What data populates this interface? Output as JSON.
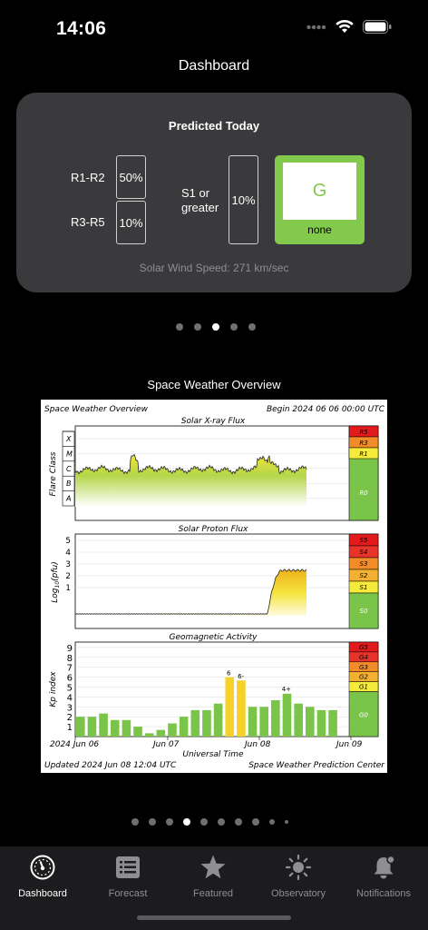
{
  "status": {
    "time": "14:06"
  },
  "header": {
    "title": "Dashboard"
  },
  "predicted": {
    "title": "Predicted Today",
    "r1r2_label": "R1-R2",
    "r1r2_value": "50%",
    "r3r5_label": "R3-R5",
    "r3r5_value": "10%",
    "s1_label": "S1 or greater",
    "s1_value": "10%",
    "g_scale": "G",
    "g_text": "none",
    "wind": "Solar Wind Speed: 271 km/sec",
    "colors": {
      "card": "#3a3a3c",
      "g_scale": "#83c94c"
    }
  },
  "carousel_top": {
    "count": 5,
    "active": 2
  },
  "overview": {
    "title": "Space Weather Overview",
    "header_left": "Space Weather Overview",
    "header_right": "Begin 2024 06 06 00:00 UTC",
    "xray": {
      "title": "Solar X-ray Flux",
      "ylabel": "Flare Class",
      "classes": [
        "X",
        "M",
        "C",
        "B",
        "A"
      ],
      "scale": [
        "R5",
        "R3",
        "R1",
        "R0"
      ]
    },
    "proton": {
      "title": "Solar Proton Flux",
      "ylabel": "Log",
      "ylabel_sub": "10",
      "ylabel_suffix": "(pfu)",
      "ticks": [
        "5",
        "4",
        "3",
        "2",
        "1"
      ],
      "scale": [
        "S5",
        "S4",
        "S3",
        "S2",
        "S1",
        "S0"
      ]
    },
    "geomag": {
      "title": "Geomagnetic Activity",
      "ylabel": "Kp index",
      "ticks": [
        "9",
        "8",
        "7",
        "6",
        "5",
        "4",
        "3",
        "2",
        "1"
      ],
      "scale": [
        "G5",
        "G4",
        "G3",
        "G2",
        "G1",
        "G0"
      ],
      "annotations": [
        "6",
        "6-",
        "4+"
      ]
    },
    "xaxis": {
      "labels": [
        "2024 Jun 06",
        "Jun 07",
        "Jun 08",
        "Jun 09"
      ],
      "title": "Universal Time"
    },
    "footer_left": "Updated 2024 Jun 08 12:04 UTC",
    "footer_right": "Space Weather Prediction Center"
  },
  "chart_data": {
    "type": "bar",
    "title": "Geomagnetic Activity",
    "ylabel": "Kp index",
    "ylim": [
      0,
      9
    ],
    "values": [
      2,
      2,
      2.33,
      1.67,
      1.67,
      1,
      0.33,
      0.67,
      1.33,
      2,
      2.67,
      2.67,
      3.33,
      6,
      5.67,
      3,
      3,
      3.67,
      4.33,
      3.33,
      3,
      2.67,
      2.67
    ]
  },
  "carousel_bottom": {
    "count": 10,
    "active": 3
  },
  "tabbar": {
    "items": [
      {
        "label": "Dashboard",
        "icon": "gauge-icon"
      },
      {
        "label": "Forecast",
        "icon": "list-icon"
      },
      {
        "label": "Featured",
        "icon": "star-icon"
      },
      {
        "label": "Observatory",
        "icon": "sun-icon"
      },
      {
        "label": "Notifications",
        "icon": "bell-icon"
      }
    ]
  }
}
